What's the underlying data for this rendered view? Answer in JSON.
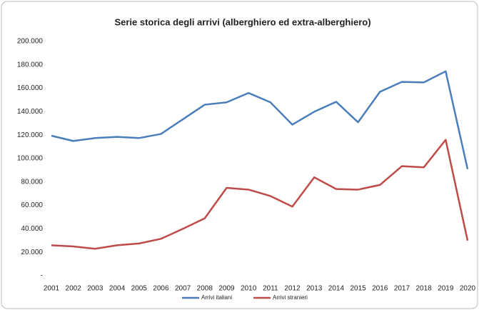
{
  "chart_data": {
    "type": "line",
    "title": "Serie storica degli arrivi (alberghiero ed extra-alberghiero)",
    "categories": [
      "2001",
      "2002",
      "2003",
      "2004",
      "2005",
      "2006",
      "2007",
      "2008",
      "2009",
      "2010",
      "2011",
      "2012",
      "2013",
      "2014",
      "2015",
      "2016",
      "2017",
      "2018",
      "2019",
      "2020"
    ],
    "series": [
      {
        "name": "Arrivi italiani",
        "color": "#4a7ebb",
        "values": [
          119500,
          115000,
          117500,
          118500,
          117500,
          121000,
          133500,
          146000,
          148000,
          156000,
          148000,
          129000,
          140000,
          148500,
          131000,
          157000,
          165500,
          165000,
          174500,
          91000
        ]
      },
      {
        "name": "Arrivi stranieri",
        "color": "#be4b48",
        "values": [
          26000,
          25000,
          23000,
          26000,
          27500,
          31500,
          40000,
          49000,
          75000,
          73500,
          68000,
          59000,
          84000,
          74000,
          73500,
          77500,
          93500,
          92500,
          116000,
          30000
        ]
      }
    ],
    "ylim": [
      0,
      200000
    ],
    "yticks": [
      {
        "value": 0,
        "label": "-"
      },
      {
        "value": 20000,
        "label": "20.000"
      },
      {
        "value": 40000,
        "label": "40.000"
      },
      {
        "value": 60000,
        "label": "60.000"
      },
      {
        "value": 80000,
        "label": "80.000"
      },
      {
        "value": 100000,
        "label": "100.000"
      },
      {
        "value": 120000,
        "label": "120.000"
      },
      {
        "value": 140000,
        "label": "140.000"
      },
      {
        "value": 160000,
        "label": "160.000"
      },
      {
        "value": 180000,
        "label": "180.000"
      },
      {
        "value": 200000,
        "label": "200.000"
      }
    ],
    "legend": "bottom"
  }
}
